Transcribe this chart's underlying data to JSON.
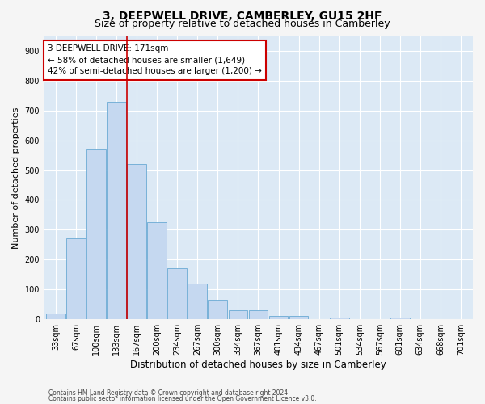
{
  "title1": "3, DEEPWELL DRIVE, CAMBERLEY, GU15 2HF",
  "title2": "Size of property relative to detached houses in Camberley",
  "xlabel": "Distribution of detached houses by size in Camberley",
  "ylabel": "Number of detached properties",
  "categories": [
    "33sqm",
    "67sqm",
    "100sqm",
    "133sqm",
    "167sqm",
    "200sqm",
    "234sqm",
    "267sqm",
    "300sqm",
    "334sqm",
    "367sqm",
    "401sqm",
    "434sqm",
    "467sqm",
    "501sqm",
    "534sqm",
    "567sqm",
    "601sqm",
    "634sqm",
    "668sqm",
    "701sqm"
  ],
  "values": [
    18,
    270,
    570,
    730,
    520,
    325,
    170,
    120,
    65,
    30,
    30,
    10,
    10,
    0,
    5,
    0,
    0,
    5,
    0,
    0,
    0
  ],
  "bar_color": "#c5d8f0",
  "bar_edge_color": "#6aaad4",
  "vline_color": "#cc0000",
  "vline_index": 3.5,
  "annotation_text": "3 DEEPWELL DRIVE: 171sqm\n← 58% of detached houses are smaller (1,649)\n42% of semi-detached houses are larger (1,200) →",
  "annotation_box_facecolor": "#ffffff",
  "annotation_box_edgecolor": "#cc0000",
  "footer1": "Contains HM Land Registry data © Crown copyright and database right 2024.",
  "footer2": "Contains public sector information licensed under the Open Government Licence v3.0.",
  "ylim": [
    0,
    950
  ],
  "yticks": [
    0,
    100,
    200,
    300,
    400,
    500,
    600,
    700,
    800,
    900
  ],
  "fig_facecolor": "#f5f5f5",
  "plot_facecolor": "#dce9f5",
  "grid_color": "#ffffff",
  "title1_fontsize": 10,
  "title2_fontsize": 9,
  "tick_fontsize": 7,
  "ylabel_fontsize": 8,
  "xlabel_fontsize": 8.5,
  "annotation_fontsize": 7.5,
  "footer_fontsize": 5.5
}
